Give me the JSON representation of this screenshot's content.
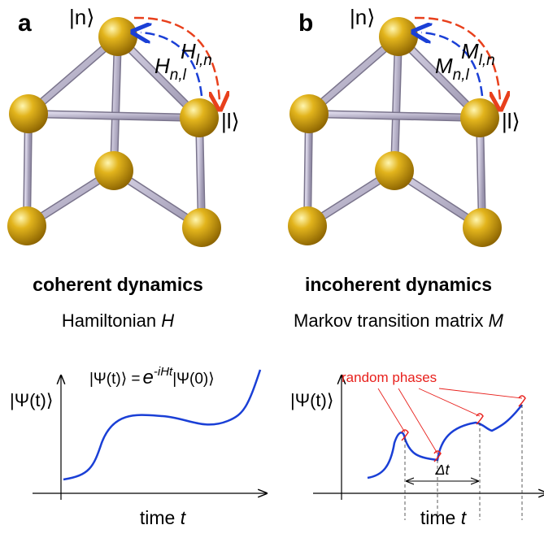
{
  "panels": [
    {
      "label": "a",
      "state_n": "|n⟩",
      "state_l": "|l⟩",
      "forward": {
        "symbol": "H",
        "sub": "l,n"
      },
      "backward": {
        "symbol": "H",
        "sub": "n,l"
      },
      "title": "coherent  dynamics",
      "subtitle": {
        "text": "Hamiltonian",
        "symbol": "H"
      },
      "y_label": "|Ψ(t)⟩",
      "x_label": {
        "text": "time",
        "symbol": "t"
      },
      "equation": {
        "lhs": "|Ψ(t)⟩ =",
        "base": "e",
        "exponent": "-iHt",
        "rhs": "|Ψ(0)⟩"
      }
    },
    {
      "label": "b",
      "state_n": "|n⟩",
      "state_l": "|l⟩",
      "forward": {
        "symbol": "M",
        "sub": "l,n"
      },
      "backward": {
        "symbol": "M",
        "sub": "n,l"
      },
      "title": "incoherent  dynamics",
      "subtitle": {
        "text": "Markov transition matrix",
        "symbol": "M"
      },
      "y_label": "|Ψ(t)⟩",
      "x_label": {
        "text": "time",
        "symbol": "t"
      },
      "annotation": "random phases",
      "interval": "Δt"
    }
  ]
}
